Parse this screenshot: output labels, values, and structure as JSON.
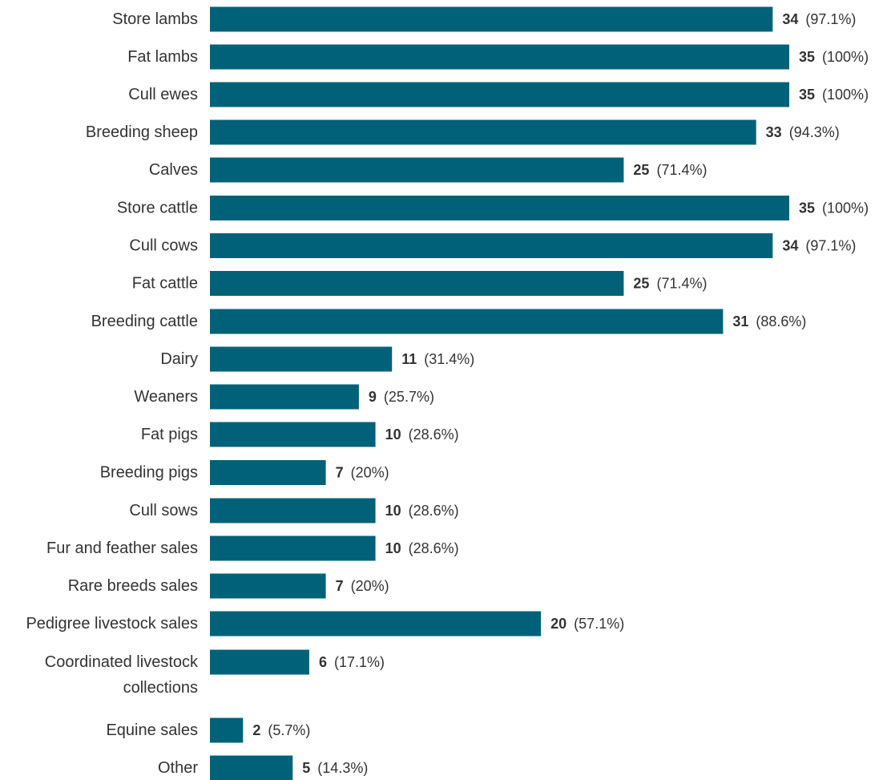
{
  "chart_data": {
    "type": "bar",
    "orientation": "horizontal",
    "title": "",
    "xlabel": "",
    "ylabel": "",
    "xlim": [
      0,
      35
    ],
    "grid": false,
    "legend": "none",
    "bar_color": "#006178",
    "categories": [
      "Store lambs",
      "Fat lambs",
      "Cull ewes",
      "Breeding sheep",
      "Calves",
      "Store cattle",
      "Cull cows",
      "Fat cattle",
      "Breeding cattle",
      "Dairy",
      "Weaners",
      "Fat pigs",
      "Breeding pigs",
      "Cull sows",
      "Fur and feather sales",
      "Rare breeds sales",
      "Pedigree livestock sales",
      [
        "Coordinated livestock",
        "collections"
      ],
      "Equine sales",
      "Other"
    ],
    "values": [
      34,
      35,
      35,
      33,
      25,
      35,
      34,
      25,
      31,
      11,
      9,
      10,
      7,
      10,
      10,
      7,
      20,
      6,
      2,
      5
    ],
    "value_labels": [
      "34",
      "35",
      "35",
      "33",
      "25",
      "35",
      "34",
      "25",
      "31",
      "11",
      "9",
      "10",
      "7",
      "10",
      "10",
      "7",
      "20",
      "6",
      "2",
      "5"
    ],
    "percent_labels": [
      "(97.1%)",
      "(100%)",
      "(100%)",
      "(94.3%)",
      "(71.4%)",
      "(100%)",
      "(97.1%)",
      "(71.4%)",
      "(88.6%)",
      "(31.4%)",
      "(25.7%)",
      "(28.6%)",
      "(20%)",
      "(28.6%)",
      "(28.6%)",
      "(20%)",
      "(57.1%)",
      "(17.1%)",
      "(5.7%)",
      "(14.3%)"
    ]
  }
}
